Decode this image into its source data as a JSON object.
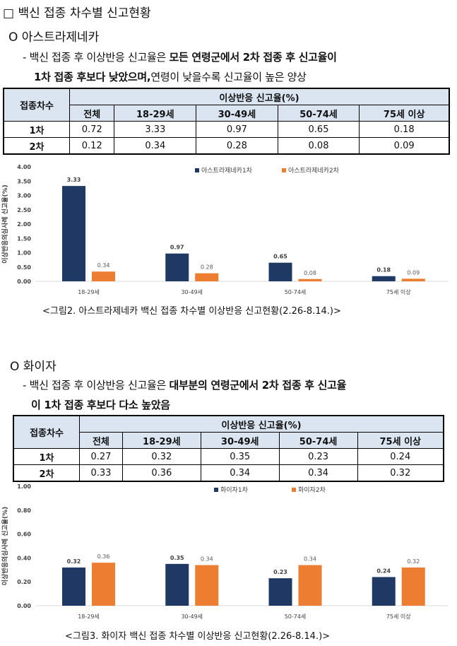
{
  "page_title": "□ 백신 접종 차수별 신고현황",
  "az": {
    "heading": "O 아스트라제네카",
    "line1_prefix": "- 백신 접종 후 이상반응 신고율은 ",
    "line1_bold": "모든 연령군에서 2차 접종 후 신고율이",
    "line2_bold": "1차 접종 후보다 낮았으며,",
    "line2_rest": "연령이 낮을수록 신고율이 높은 양상",
    "table": {
      "row_header": "접종차수",
      "group_header": "이상반응 신고율(%)",
      "columns": [
        "전체",
        "18-29세",
        "30-49세",
        "50-74세",
        "75세 이상"
      ],
      "rows": [
        {
          "label": "1차",
          "values": [
            "0.72",
            "3.33",
            "0.97",
            "0.65",
            "0.18"
          ]
        },
        {
          "label": "2차",
          "values": [
            "0.12",
            "0.34",
            "0.28",
            "0.08",
            "0.09"
          ]
        }
      ]
    },
    "caption": "<그림2. 아스트라제네카 백신 접종 차수별 이상반응 신고현황(2.26-8.14.)>"
  },
  "pf": {
    "heading": "O 화이자",
    "line1_prefix": "- 백신 접종 후 이상반응 신고율은 ",
    "line1_bold": "대부분의 연령군에서 2차 접종 후 신고율",
    "line2_bold": "이 1차 접종 후보다 다소 높았음",
    "table": {
      "row_header": "접종차수",
      "group_header": "이상반응 신고율(%)",
      "columns": [
        "전체",
        "18-29세",
        "30-49세",
        "50-74세",
        "75세 이상"
      ],
      "rows": [
        {
          "label": "1차",
          "values": [
            "0.27",
            "0.32",
            "0.35",
            "0.23",
            "0.24"
          ]
        },
        {
          "label": "2차",
          "values": [
            "0.33",
            "0.36",
            "0.34",
            "0.34",
            "0.32"
          ]
        }
      ]
    },
    "caption": "<그림3. 화이자 백신 접종 차수별 이상반응 신고현황(2.26-8.14.)>"
  },
  "colors": {
    "dose1": "#1f3864",
    "dose2": "#ed7d31",
    "header_bg": "#dbe5f1"
  },
  "chart_data": [
    {
      "type": "bar",
      "title": "",
      "ylabel": "이상반응의심사례 신고율(%)",
      "xlabel": "",
      "categories": [
        "18-29세",
        "30-49세",
        "50-74세",
        "75세 이상"
      ],
      "series": [
        {
          "name": "아스트라제네카1차",
          "values": [
            3.33,
            0.97,
            0.65,
            0.18
          ]
        },
        {
          "name": "아스트라제네카2차",
          "values": [
            0.34,
            0.28,
            0.08,
            0.09
          ]
        }
      ],
      "ylim": [
        0,
        4.0
      ],
      "yticks": [
        "0.00",
        "0.50",
        "1.00",
        "1.50",
        "2.00",
        "2.50",
        "3.00",
        "3.50",
        "4.00"
      ],
      "legend": "top-right"
    },
    {
      "type": "bar",
      "title": "",
      "ylabel": "이상반응의심사례 신고율(%)",
      "xlabel": "",
      "categories": [
        "18-29세",
        "30-49세",
        "50-74세",
        "75세 이상"
      ],
      "series": [
        {
          "name": "화이자1차",
          "values": [
            0.32,
            0.35,
            0.23,
            0.24
          ]
        },
        {
          "name": "화이자2차",
          "values": [
            0.36,
            0.34,
            0.34,
            0.32
          ]
        }
      ],
      "ylim": [
        0,
        1.0
      ],
      "yticks": [
        "0.00",
        "0.20",
        "0.40",
        "0.60",
        "0.80",
        "1.00"
      ],
      "legend": "top-right"
    }
  ]
}
